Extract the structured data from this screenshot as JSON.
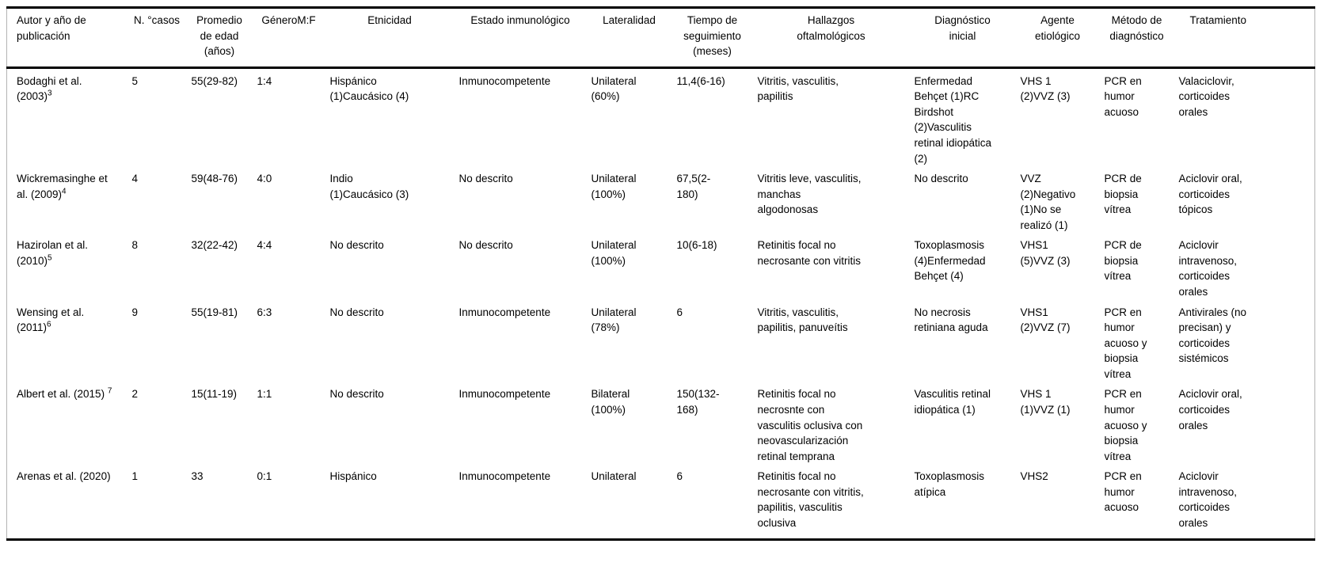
{
  "page": {
    "background": "#ffffff",
    "text_color": "#000000",
    "rule_color": "#000000"
  },
  "table": {
    "columns": [
      "Autor y año de publicación",
      "N. °casos",
      "Promedio de edad (años)",
      "GéneroM:F",
      "Etnicidad",
      "Estado inmunológico",
      "Lateralidad",
      "Tiempo de seguimiento (meses)",
      "Hallazgos oftalmológicos",
      "Diagnóstico inicial",
      "Agente etiológico",
      "Método de diagnóstico",
      "Tratamiento"
    ],
    "rows": [
      {
        "author": "Bodaghi et al. (2003)",
        "author_sup": "3",
        "cells": [
          "5",
          "55(29-82)",
          "1:4",
          "Hispánico (1)Caucásico (4)",
          "Inmunocompetente",
          "Unilateral (60%)",
          "11,4(6-16)",
          "Vitritis, vasculitis, papilitis",
          "Enfermedad Behçet (1)RC Birdshot (2)Vasculitis retinal idiopática (2)",
          "VHS 1 (2)VVZ (3)",
          "PCR en humor acuoso",
          "Valaciclovir, corticoides orales"
        ]
      },
      {
        "author": "Wickremasinghe et al. (2009)",
        "author_sup": "4",
        "cells": [
          "4",
          "59(48-76)",
          "4:0",
          "Indio (1)Caucásico (3)",
          "No descrito",
          "Unilateral (100%)",
          "67,5(2-180)",
          "Vitritis leve, vasculitis, manchas algodonosas",
          "No descrito",
          "VVZ (2)Negativo (1)No se realizó (1)",
          "PCR de biopsia vítrea",
          "Aciclovir oral, corticoides tópicos"
        ]
      },
      {
        "author": "Hazirolan et al. (2010)",
        "author_sup": "5",
        "cells": [
          "8",
          "32(22-42)",
          "4:4",
          "No descrito",
          "No descrito",
          "Unilateral (100%)",
          "10(6-18)",
          "Retinitis focal no necrosante con vitritis",
          "Toxoplasmosis (4)Enfermedad Behçet (4)",
          "VHS1 (5)VVZ (3)",
          "PCR de biopsia vítrea",
          "Aciclovir intravenoso, corticoides orales"
        ]
      },
      {
        "author": "Wensing et al. (2011)",
        "author_sup": "6",
        "cells": [
          "9",
          "55(19-81)",
          "6:3",
          "No descrito",
          "Inmunocompetente",
          "Unilateral (78%)",
          "6",
          "Vitritis, vasculitis, papilitis, panuveítis",
          "No necrosis retiniana aguda",
          "VHS1 (2)VVZ (7)",
          "PCR en humor acuoso y biopsia vítrea",
          "Antivirales (no precisan) y corticoides sistémicos"
        ]
      },
      {
        "author": "Albert et al. (2015) ",
        "author_sup": "7",
        "cells": [
          "2",
          "15(11-19)",
          "1:1",
          "No descrito",
          "Inmunocompetente",
          "Bilateral (100%)",
          "150(132-168)",
          "Retinitis focal no necrosnte con vasculitis oclusiva con neovascularización retinal temprana",
          "Vasculitis retinal idiopática (1)",
          "VHS 1 (1)VVZ (1)",
          "PCR en humor acuoso y biopsia vítrea",
          "Aciclovir oral, corticoides orales"
        ]
      },
      {
        "author": "Arenas et al. (2020)",
        "author_sup": "",
        "cells": [
          "1",
          "33",
          "0:1",
          "Hispánico",
          "Inmunocompetente",
          "Unilateral",
          "6",
          "Retinitis focal no necrosante con vitritis, papilitis, vasculitis oclusiva",
          "Toxoplasmosis atípica",
          "VHS2",
          "PCR en humor acuoso",
          "Aciclovir intravenoso, corticoides orales"
        ]
      }
    ]
  }
}
